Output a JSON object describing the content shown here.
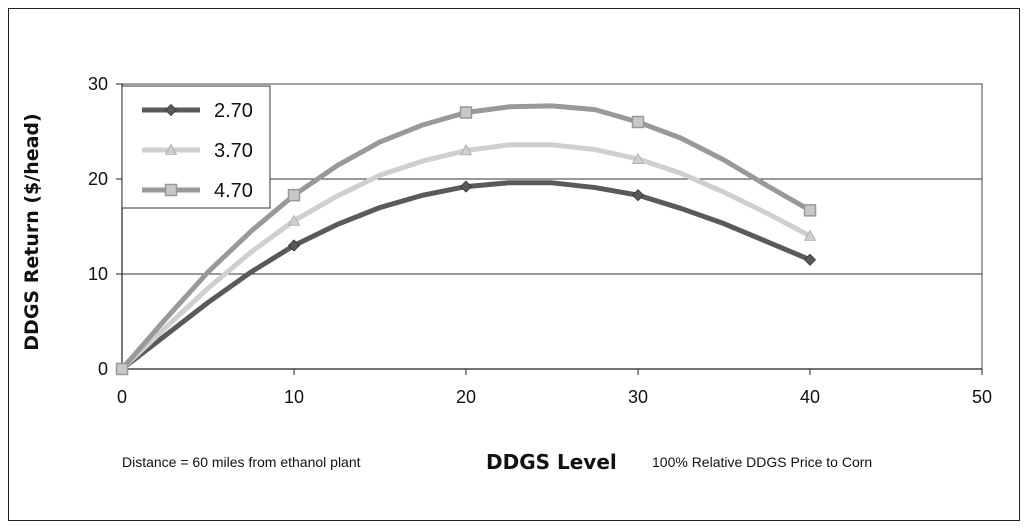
{
  "chart_data": {
    "type": "line",
    "ylabel": "DDGS Return ($/head)",
    "xlabel": "DDGS Level",
    "note_left": "Distance = 60 miles from ethanol plant",
    "note_right": "100% Relative DDGS Price to Corn",
    "xlim": [
      0,
      50
    ],
    "ylim": [
      0,
      30
    ],
    "xticks": [
      0,
      10,
      20,
      30,
      40,
      50
    ],
    "yticks": [
      0,
      10,
      20,
      30
    ],
    "grid": true,
    "legend_position": "top-left",
    "series": [
      {
        "name": "2.70",
        "color": "#5a5a5a",
        "marker": "diamond",
        "x": [
          0,
          2.5,
          5,
          7.5,
          10,
          12.5,
          15,
          17.5,
          20,
          22.5,
          25,
          27.5,
          30,
          32.5,
          35,
          37.5,
          40
        ],
        "y": [
          0,
          3.5,
          7,
          10.2,
          13,
          15.2,
          17,
          18.3,
          19.2,
          19.6,
          19.6,
          19.1,
          18.3,
          16.9,
          15.3,
          13.4,
          11.5
        ],
        "marker_x": [
          0,
          10,
          20,
          30,
          40
        ]
      },
      {
        "name": "3.70",
        "color": "#cfcfcf",
        "marker": "triangle",
        "x": [
          0,
          2.5,
          5,
          7.5,
          10,
          12.5,
          15,
          17.5,
          20,
          22.5,
          25,
          27.5,
          30,
          32.5,
          35,
          37.5,
          40
        ],
        "y": [
          0,
          4.3,
          8.5,
          12.3,
          15.6,
          18.2,
          20.4,
          21.9,
          23,
          23.6,
          23.6,
          23.1,
          22.1,
          20.6,
          18.6,
          16.4,
          14
        ],
        "marker_x": [
          0,
          10,
          20,
          30,
          40
        ]
      },
      {
        "name": "4.70",
        "color": "#999999",
        "marker": "square",
        "x": [
          0,
          2.5,
          5,
          7.5,
          10,
          12.5,
          15,
          17.5,
          20,
          22.5,
          25,
          27.5,
          30,
          32.5,
          35,
          37.5,
          40
        ],
        "y": [
          0,
          5.2,
          10.2,
          14.5,
          18.3,
          21.4,
          23.9,
          25.7,
          27,
          27.6,
          27.7,
          27.3,
          26,
          24.3,
          22,
          19.3,
          16.7
        ],
        "marker_x": [
          0,
          10,
          20,
          30,
          40
        ]
      }
    ]
  }
}
